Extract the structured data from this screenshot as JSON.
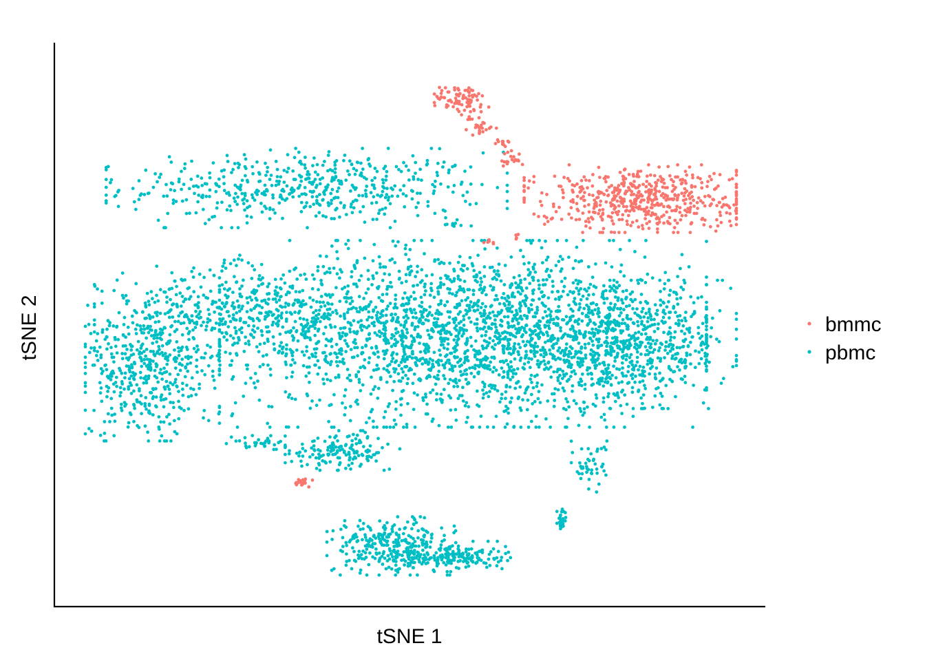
{
  "chart_data": {
    "type": "scatter",
    "title": "",
    "xlabel": "tSNE 1",
    "ylabel": "tSNE 2",
    "xlim": [
      0,
      100
    ],
    "ylim": [
      0,
      100
    ],
    "x_ticks_shown": false,
    "y_ticks_shown": false,
    "grid": false,
    "legend_position": "right",
    "point_generation_seed": 12345,
    "series": [
      {
        "name": "bmmc",
        "color": "#F8766D",
        "clusters": [
          {
            "cx": 58.0,
            "cy": 93.5,
            "sx": 2.0,
            "sy": 1.6,
            "n": 85
          },
          {
            "cx": 60.5,
            "cy": 88.5,
            "sx": 1.2,
            "sy": 0.8,
            "n": 22
          },
          {
            "cx": 64.0,
            "cy": 85.5,
            "sx": 0.7,
            "sy": 0.7,
            "n": 12
          },
          {
            "cx": 65.5,
            "cy": 82.5,
            "sx": 0.9,
            "sy": 0.7,
            "n": 20
          },
          {
            "cx": 85.0,
            "cy": 75.0,
            "sx": 8.0,
            "sy": 2.9,
            "n": 540
          },
          {
            "cx": 62.0,
            "cy": 67.0,
            "sx": 0.6,
            "sy": 0.3,
            "n": 6
          },
          {
            "cx": 66.5,
            "cy": 67.8,
            "sx": 0.3,
            "sy": 0.5,
            "n": 4
          },
          {
            "cx": 33.0,
            "cy": 21.5,
            "sx": 0.9,
            "sy": 0.5,
            "n": 18
          }
        ]
      },
      {
        "name": "pbmc",
        "color": "#00BFC4",
        "clusters": [
          {
            "cx": 34.0,
            "cy": 77.0,
            "sx": 14.0,
            "sy": 3.4,
            "n": 520
          },
          {
            "cx": 56.5,
            "cy": 70.5,
            "sx": 0.7,
            "sy": 0.5,
            "n": 10
          },
          {
            "cx": 58.0,
            "cy": 49.5,
            "sx": 17.0,
            "sy": 8.0,
            "n": 2100
          },
          {
            "cx": 82.5,
            "cy": 47.5,
            "sx": 8.0,
            "sy": 5.5,
            "n": 650
          },
          {
            "cx": 24.5,
            "cy": 53.5,
            "sx": 10.5,
            "sy": 4.5,
            "n": 480
          },
          {
            "cx": 9.5,
            "cy": 42.5,
            "sx": 5.0,
            "sy": 6.0,
            "n": 450
          },
          {
            "cx": 26.5,
            "cy": 29.0,
            "sx": 2.2,
            "sy": 0.7,
            "n": 35
          },
          {
            "cx": 39.5,
            "cy": 27.5,
            "sx": 4.0,
            "sy": 1.7,
            "n": 150
          },
          {
            "cx": 47.0,
            "cy": 9.5,
            "sx": 4.5,
            "sy": 2.5,
            "n": 290
          },
          {
            "cx": 56.5,
            "cy": 7.5,
            "sx": 4.0,
            "sy": 1.3,
            "n": 170
          },
          {
            "cx": 77.5,
            "cy": 24.5,
            "sx": 1.3,
            "sy": 2.2,
            "n": 45
          },
          {
            "cx": 73.2,
            "cy": 14.5,
            "sx": 0.35,
            "sy": 1.4,
            "n": 30
          }
        ]
      }
    ]
  }
}
